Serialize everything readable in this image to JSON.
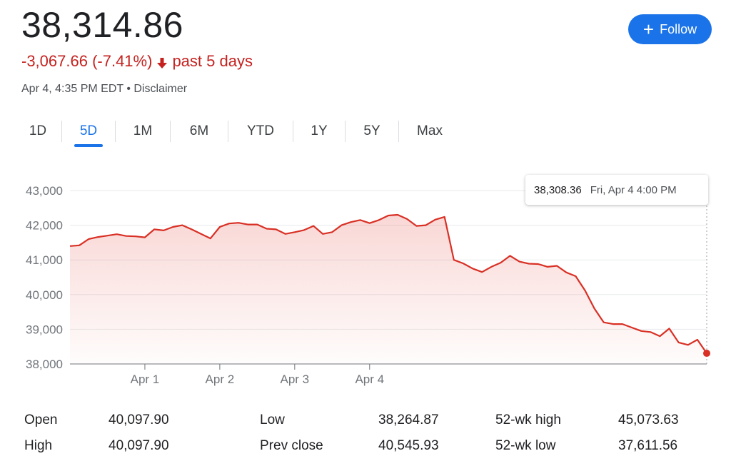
{
  "header": {
    "price": "38,314.86",
    "change": "-3,067.66 (-7.41%)",
    "period": "past 5 days",
    "timestamp": "Apr 4, 4:35 PM EDT",
    "disclaimer": "Disclaimer",
    "follow_label": "Follow",
    "change_color": "#c5221f",
    "accent_color": "#1a73e8"
  },
  "ranges": [
    "1D",
    "5D",
    "1M",
    "6M",
    "YTD",
    "1Y",
    "5Y",
    "Max"
  ],
  "selected_range": "5D",
  "tooltip": {
    "value": "38,308.36",
    "date": "Fri, Apr 4 4:00 PM"
  },
  "chart_data": {
    "type": "area",
    "title": "",
    "xlabel": "",
    "ylabel": "",
    "ylim": [
      38000,
      43000
    ],
    "yticks": [
      43000,
      42000,
      41000,
      40000,
      39000,
      38000
    ],
    "ytick_labels": [
      "43,000",
      "42,000",
      "41,000",
      "40,000",
      "39,000",
      "38,000"
    ],
    "xtick_labels": [
      "Apr 1",
      "Apr 2",
      "Apr 3",
      "Apr 4"
    ],
    "xtick_positions": [
      8,
      16,
      24,
      32
    ],
    "grid": true,
    "line_color": "#d93025",
    "series": [
      {
        "values": [
          41400,
          41420,
          41600,
          41660,
          41700,
          41740,
          41690,
          41680,
          41650,
          41880,
          41850,
          41950,
          42000,
          41880,
          41750,
          41620,
          41950,
          42050,
          42070,
          42020,
          42020,
          41900,
          41880,
          41750,
          41800,
          41860,
          41980,
          41750,
          41800,
          42000,
          42090,
          42150,
          42060,
          42150,
          42280,
          42300,
          42180,
          41980,
          42000,
          42160,
          42240,
          41000,
          40900,
          40750,
          40650,
          40800,
          40920,
          41120,
          40950,
          40890,
          40880,
          40800,
          40830,
          40640,
          40530,
          40120,
          39600,
          39200,
          39150,
          39150,
          39050,
          38950,
          38920,
          38800,
          39020,
          38620,
          38550,
          38700,
          38308
        ]
      }
    ]
  },
  "stats": [
    {
      "label": "Open",
      "value": "40,097.90"
    },
    {
      "label": "High",
      "value": "40,097.90"
    },
    {
      "label": "Low",
      "value": "38,264.87"
    },
    {
      "label": "Prev close",
      "value": "40,545.93"
    },
    {
      "label": "52-wk high",
      "value": "45,073.63"
    },
    {
      "label": "52-wk low",
      "value": "37,611.56"
    }
  ]
}
